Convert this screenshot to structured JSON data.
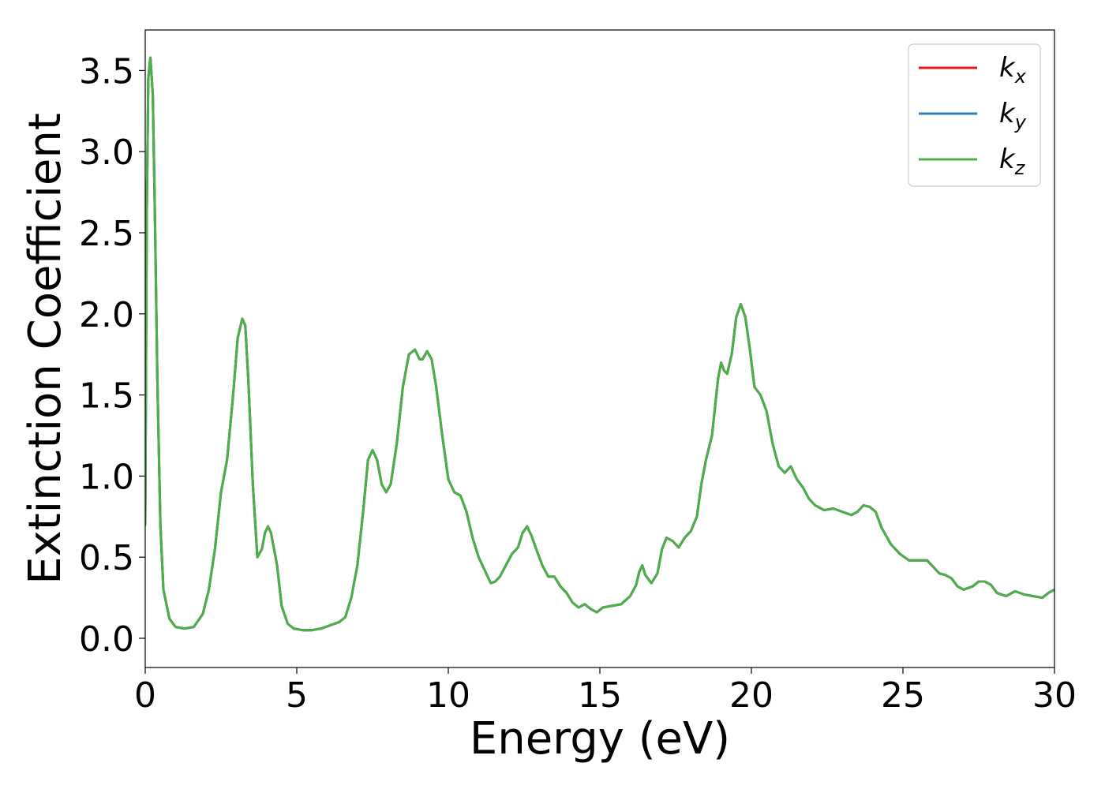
{
  "chart_data": {
    "type": "line",
    "xlabel": "Energy (eV)",
    "ylabel": "Extinction Coefficient",
    "xlim": [
      0,
      30
    ],
    "ylim": [
      -0.18,
      3.75
    ],
    "xticks": [
      0,
      5,
      10,
      15,
      20,
      25,
      30
    ],
    "xtick_labels": [
      "0",
      "5",
      "10",
      "15",
      "20",
      "25",
      "30"
    ],
    "yticks": [
      0.0,
      0.5,
      1.0,
      1.5,
      2.0,
      2.5,
      3.0,
      3.5
    ],
    "ytick_labels": [
      "0.0",
      "0.5",
      "1.0",
      "1.5",
      "2.0",
      "2.5",
      "3.0",
      "3.5"
    ],
    "grid": false,
    "legend_position": "top-right",
    "series": [
      {
        "name": "k",
        "subscript": "x",
        "color": "#e41a1c"
      },
      {
        "name": "k",
        "subscript": "y",
        "color": "#377eb8"
      },
      {
        "name": "k",
        "subscript": "z",
        "color": "#4daf4a"
      }
    ],
    "x": [
      0.0,
      0.05,
      0.1,
      0.17,
      0.25,
      0.32,
      0.4,
      0.5,
      0.6,
      0.8,
      1.0,
      1.3,
      1.6,
      1.9,
      2.1,
      2.3,
      2.5,
      2.7,
      2.9,
      3.05,
      3.2,
      3.3,
      3.4,
      3.55,
      3.7,
      3.85,
      3.95,
      4.05,
      4.15,
      4.25,
      4.35,
      4.5,
      4.7,
      4.9,
      5.2,
      5.5,
      5.8,
      6.1,
      6.4,
      6.6,
      6.8,
      7.0,
      7.2,
      7.35,
      7.5,
      7.65,
      7.8,
      7.95,
      8.1,
      8.3,
      8.5,
      8.7,
      8.9,
      9.05,
      9.15,
      9.3,
      9.45,
      9.6,
      9.8,
      10.0,
      10.2,
      10.4,
      10.6,
      10.8,
      11.0,
      11.2,
      11.4,
      11.55,
      11.7,
      11.9,
      12.1,
      12.3,
      12.45,
      12.6,
      12.75,
      12.9,
      13.1,
      13.3,
      13.5,
      13.7,
      13.9,
      14.1,
      14.3,
      14.5,
      14.7,
      14.9,
      15.1,
      15.4,
      15.7,
      16.0,
      16.2,
      16.3,
      16.4,
      16.5,
      16.7,
      16.9,
      17.05,
      17.2,
      17.4,
      17.6,
      17.8,
      18.0,
      18.2,
      18.35,
      18.5,
      18.7,
      18.9,
      19.0,
      19.1,
      19.2,
      19.35,
      19.5,
      19.65,
      19.8,
      19.95,
      20.1,
      20.3,
      20.5,
      20.7,
      20.9,
      21.1,
      21.3,
      21.5,
      21.7,
      21.9,
      22.1,
      22.4,
      22.7,
      23.0,
      23.3,
      23.5,
      23.7,
      23.9,
      24.1,
      24.3,
      24.6,
      24.9,
      25.2,
      25.5,
      25.8,
      26.0,
      26.2,
      26.4,
      26.6,
      26.8,
      27.0,
      27.3,
      27.5,
      27.7,
      27.9,
      28.1,
      28.4,
      28.7,
      29.0,
      29.3,
      29.6,
      29.8,
      30.0
    ],
    "y": [
      0.7,
      2.6,
      3.45,
      3.58,
      3.35,
      2.6,
      1.6,
      0.7,
      0.3,
      0.12,
      0.07,
      0.06,
      0.07,
      0.15,
      0.3,
      0.55,
      0.9,
      1.1,
      1.5,
      1.85,
      1.97,
      1.93,
      1.6,
      0.95,
      0.5,
      0.55,
      0.65,
      0.69,
      0.65,
      0.55,
      0.45,
      0.2,
      0.09,
      0.06,
      0.05,
      0.05,
      0.06,
      0.08,
      0.1,
      0.13,
      0.25,
      0.45,
      0.8,
      1.1,
      1.16,
      1.1,
      0.95,
      0.9,
      0.95,
      1.2,
      1.55,
      1.75,
      1.78,
      1.72,
      1.72,
      1.77,
      1.72,
      1.55,
      1.25,
      0.98,
      0.9,
      0.88,
      0.78,
      0.62,
      0.5,
      0.42,
      0.34,
      0.35,
      0.38,
      0.45,
      0.52,
      0.56,
      0.65,
      0.69,
      0.63,
      0.55,
      0.45,
      0.38,
      0.38,
      0.32,
      0.28,
      0.22,
      0.19,
      0.21,
      0.18,
      0.16,
      0.19,
      0.2,
      0.21,
      0.26,
      0.33,
      0.41,
      0.45,
      0.39,
      0.34,
      0.4,
      0.55,
      0.62,
      0.6,
      0.56,
      0.62,
      0.66,
      0.75,
      0.95,
      1.1,
      1.25,
      1.6,
      1.7,
      1.65,
      1.63,
      1.75,
      1.98,
      2.06,
      1.98,
      1.78,
      1.55,
      1.5,
      1.4,
      1.2,
      1.06,
      1.02,
      1.06,
      0.98,
      0.93,
      0.86,
      0.82,
      0.79,
      0.8,
      0.78,
      0.76,
      0.78,
      0.82,
      0.81,
      0.78,
      0.68,
      0.58,
      0.52,
      0.48,
      0.48,
      0.48,
      0.44,
      0.4,
      0.39,
      0.37,
      0.32,
      0.3,
      0.32,
      0.35,
      0.35,
      0.33,
      0.28,
      0.26,
      0.29,
      0.27,
      0.26,
      0.25,
      0.28,
      0.3
    ]
  }
}
